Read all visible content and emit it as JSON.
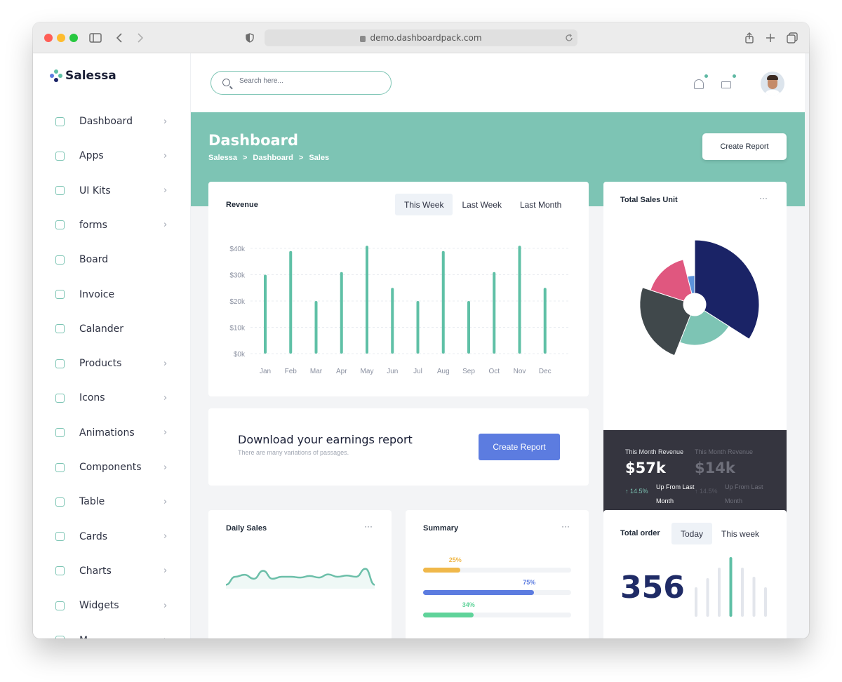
{
  "browser": {
    "url": "demo.dashboardpack.com"
  },
  "brand": {
    "name": "Salessa"
  },
  "sidebar": {
    "items": [
      {
        "label": "Dashboard",
        "chevron": true
      },
      {
        "label": "Apps",
        "chevron": true
      },
      {
        "label": "UI Kits",
        "chevron": true
      },
      {
        "label": "forms",
        "chevron": true
      },
      {
        "label": "Board",
        "chevron": false
      },
      {
        "label": "Invoice",
        "chevron": false
      },
      {
        "label": "Calander",
        "chevron": false
      },
      {
        "label": "Products",
        "chevron": true
      },
      {
        "label": "Icons",
        "chevron": true
      },
      {
        "label": "Animations",
        "chevron": true
      },
      {
        "label": "Components",
        "chevron": true
      },
      {
        "label": "Table",
        "chevron": true
      },
      {
        "label": "Cards",
        "chevron": true
      },
      {
        "label": "Charts",
        "chevron": true
      },
      {
        "label": "Widgets",
        "chevron": true
      },
      {
        "label": "M...",
        "chevron": true
      }
    ]
  },
  "search": {
    "placeholder": "Search here..."
  },
  "header": {
    "title": "Dashboard",
    "breadcrumbs": [
      "Salessa",
      ">",
      "Dashboard",
      ">",
      "Sales"
    ],
    "create_report": "Create Report"
  },
  "revenue": {
    "title": "Revenue",
    "tabs": [
      "This Week",
      "Last Week",
      "Last Month"
    ],
    "active_tab": "This Week"
  },
  "total_sales": {
    "title": "Total Sales Unit",
    "stats": [
      {
        "label": "This Month Revenue",
        "value": "$57k",
        "pct": "14.5%",
        "sub": "Up From Last Month"
      },
      {
        "label": "This Month Revenue",
        "value": "$14k",
        "pct": "14.5%",
        "sub": "Up From Last Month"
      }
    ]
  },
  "earnings": {
    "title": "Download your earnings report",
    "subtitle": "There are many variations of passages.",
    "button": "Create Report"
  },
  "daily_sales": {
    "title": "Daily Sales"
  },
  "summary": {
    "title": "Summary",
    "bars": [
      {
        "label": "25%",
        "value": 25,
        "color": "#f0b84a"
      },
      {
        "label": "75%",
        "value": 75,
        "color": "#5c7ce0"
      },
      {
        "label": "34%",
        "value": 34,
        "color": "#5fd39a"
      }
    ]
  },
  "total_order": {
    "title": "Total order",
    "tabs": [
      "Today",
      "This week"
    ],
    "active_tab": "Today",
    "value": "356"
  },
  "colors": {
    "accent": "#7dc4b4",
    "teal": "#5fc0a6",
    "navy": "#1a2366",
    "pink": "#e0577f",
    "slate": "#40484b",
    "blue": "#5c7ce0"
  },
  "chart_data": [
    {
      "type": "bar",
      "title": "Revenue",
      "categories": [
        "Jan",
        "Feb",
        "Mar",
        "Apr",
        "May",
        "Jun",
        "Jul",
        "Aug",
        "Sep",
        "Oct",
        "Nov",
        "Dec"
      ],
      "values": [
        30000,
        39000,
        20000,
        31000,
        41000,
        25000,
        20000,
        39000,
        20000,
        31000,
        41000,
        25000
      ],
      "yticks": [
        "$0k",
        "$10k",
        "$20k",
        "$30k",
        "$40k"
      ],
      "ylim": [
        0,
        40000
      ],
      "grid": true
    },
    {
      "type": "pie",
      "title": "Total Sales Unit",
      "series": [
        {
          "value": 34,
          "radius": 1.0,
          "color": "#1a2366"
        },
        {
          "value": 22,
          "radius": 0.63,
          "color": "#7dc4b4"
        },
        {
          "value": 24,
          "radius": 0.85,
          "color": "#40484b"
        },
        {
          "value": 16,
          "radius": 0.72,
          "color": "#e0577f"
        },
        {
          "value": 4,
          "radius": 0.45,
          "color": "#5c93dc"
        }
      ]
    },
    {
      "type": "line",
      "title": "Daily Sales",
      "values": [
        3,
        5,
        5.5,
        4.5,
        6.5,
        4.5,
        5,
        5,
        4.8,
        5.2,
        4.8,
        5.6,
        5,
        5.3,
        5,
        7,
        3
      ]
    },
    {
      "type": "bar",
      "title": "Total order",
      "values": [
        42,
        55,
        70,
        85,
        70,
        57,
        42
      ],
      "highlight_index": 3
    }
  ]
}
